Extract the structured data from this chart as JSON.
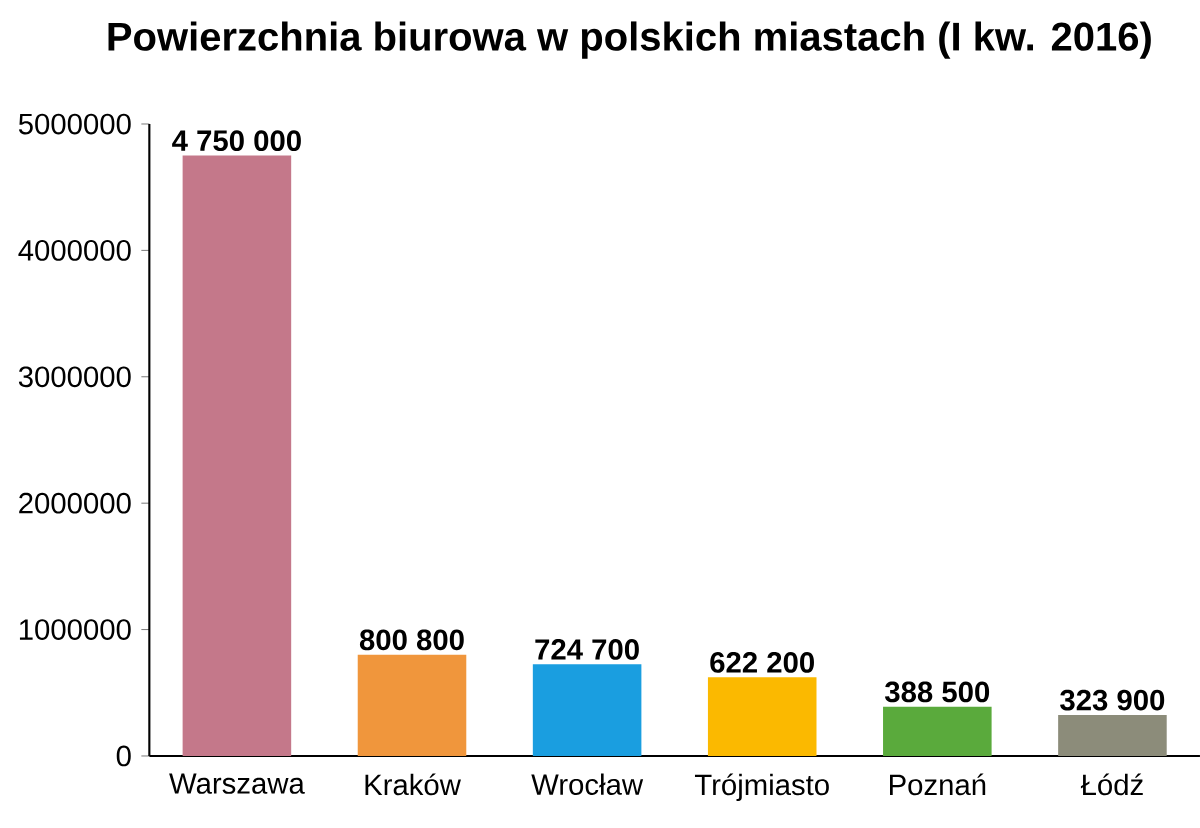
{
  "chart_data": {
    "type": "bar",
    "title": "Powierzchnia biurowa w polskich miastach (I kw. 2016)",
    "categories": [
      "Warszawa",
      "Kraków",
      "Wrocław",
      "Trójmiasto",
      "Poznań",
      "Łódź"
    ],
    "values": [
      4750000,
      800800,
      724700,
      622200,
      388500,
      323900
    ],
    "value_labels": [
      "4 750 000",
      "800 800",
      "724 700",
      "622 200",
      "388 500",
      "323 900"
    ],
    "colors": [
      "#c4788a",
      "#f0963c",
      "#1a9ee0",
      "#fbb900",
      "#5aaa3c",
      "#8c8c7a"
    ],
    "ylim": [
      0,
      5000000
    ],
    "yticks": [
      0,
      1000000,
      2000000,
      3000000,
      4000000,
      5000000
    ],
    "grid": false
  }
}
